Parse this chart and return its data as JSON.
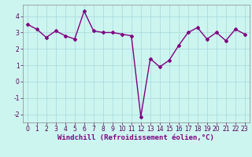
{
  "x": [
    0,
    1,
    2,
    3,
    4,
    5,
    6,
    7,
    8,
    9,
    10,
    11,
    12,
    13,
    14,
    15,
    16,
    17,
    18,
    19,
    20,
    21,
    22,
    23
  ],
  "y": [
    3.5,
    3.2,
    2.7,
    3.1,
    2.8,
    2.6,
    4.3,
    3.1,
    3.0,
    3.0,
    2.9,
    2.8,
    -2.15,
    1.4,
    0.9,
    1.3,
    2.2,
    3.0,
    3.3,
    2.6,
    3.0,
    2.5,
    3.2,
    2.9
  ],
  "line_color": "#800080",
  "marker": "D",
  "marker_size": 2,
  "bg_color": "#cdf5f0",
  "grid_color": "#aadddd",
  "xlabel": "Windchill (Refroidissement éolien,°C)",
  "ylim": [
    -2.5,
    4.7
  ],
  "xlim": [
    -0.5,
    23.5
  ],
  "yticks": [
    -2,
    -1,
    0,
    1,
    2,
    3,
    4
  ],
  "xticks": [
    0,
    1,
    2,
    3,
    4,
    5,
    6,
    7,
    8,
    9,
    10,
    11,
    12,
    13,
    14,
    15,
    16,
    17,
    18,
    19,
    20,
    21,
    22,
    23
  ],
  "tick_fontsize": 5.5,
  "xlabel_fontsize": 6.5,
  "line_width": 1.0
}
